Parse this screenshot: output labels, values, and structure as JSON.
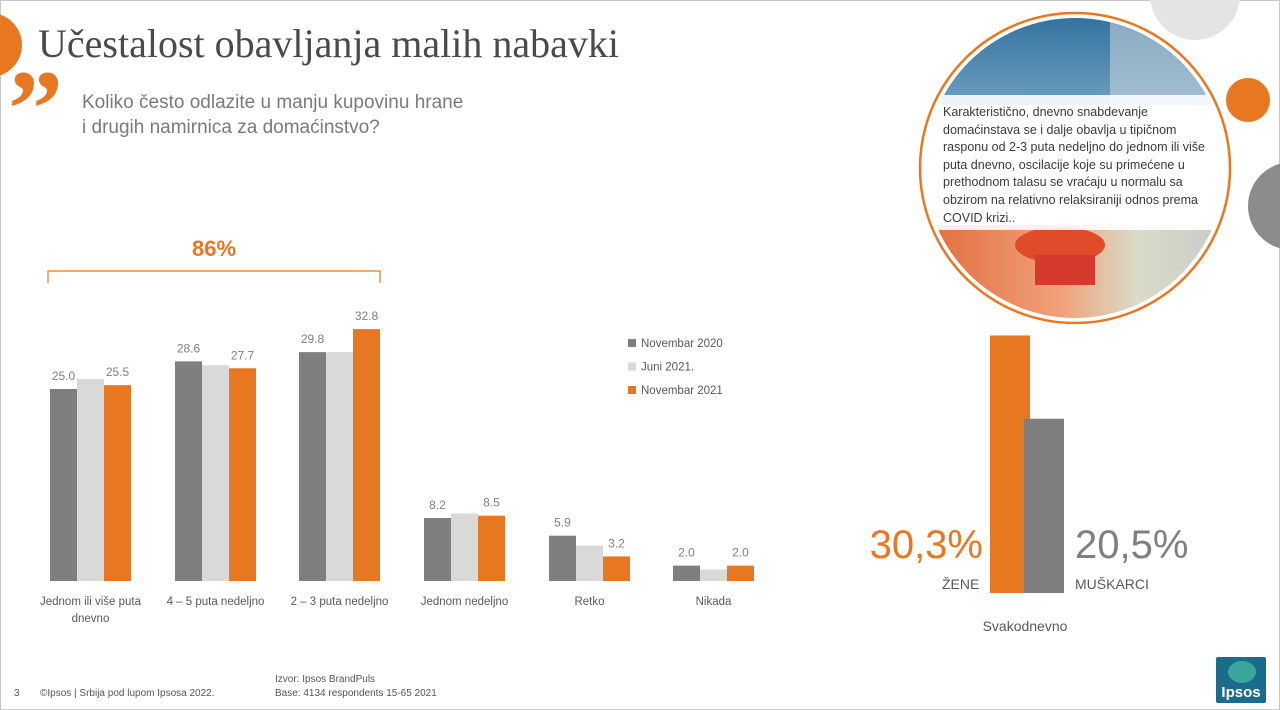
{
  "title": "Učestalost obavljanja malih nabavki",
  "question_line1": "Koliko često odlazite u manju kupovinu hrane",
  "question_line2": "i drugih namirnica za domaćinstvo?",
  "bubble_text": "Karakteristično, dnevno snabdevanje domaćinstava se i dalje obavlja u tipičnom rasponu od 2-3 puta nedeljno do jednom ili više puta dnevno, oscilacije koje su primećene u prethodnom talasu se vraćaju u normalu sa obzirom na relativno relaksiraniji odnos prema COVID krizi..",
  "footer": {
    "page_number": "3",
    "copyright": "©Ipsos | Srbija pod lupom Ipsosa 2022.",
    "source": "Izvor: Ipsos BrandPuls",
    "base": "Base: 4134 respondents 15-65 2021"
  },
  "logo_text": "Ipsos",
  "colors": {
    "dark_grey": "#7f7f7f",
    "light_grey": "#d9d9d9",
    "orange": "#e87722",
    "text": "#595959"
  },
  "chart_data": [
    {
      "type": "bar",
      "categories": [
        "Jednom ili više puta dnevno",
        "4 – 5 puta nedeljno",
        "2 – 3 puta nedeljno",
        "Jednom nedeljno",
        "Retko",
        "Nikada"
      ],
      "category_lines": [
        [
          "Jednom ili više puta",
          "dnevno"
        ],
        [
          "4 – 5 puta nedeljno"
        ],
        [
          "2 – 3 puta nedeljno"
        ],
        [
          "Jednom nedeljno"
        ],
        [
          "Retko"
        ],
        [
          "Nikada"
        ]
      ],
      "series": [
        {
          "name": "Novembar 2020",
          "color": "#7f7f7f",
          "values": [
            25.0,
            28.6,
            29.8,
            8.2,
            5.9,
            2.0
          ],
          "labels": [
            "25.0",
            "28.6",
            "29.8",
            "8.2",
            "5.9",
            "2.0"
          ]
        },
        {
          "name": "Juni 2021.",
          "color": "#d9d9d9",
          "values": [
            26.3,
            28.1,
            29.8,
            8.8,
            4.6,
            1.5
          ],
          "labels": []
        },
        {
          "name": "Novembar 2021",
          "color": "#e87722",
          "values": [
            25.5,
            27.7,
            32.8,
            8.5,
            3.2,
            2.0
          ],
          "labels": [
            "25.5",
            "27.7",
            "32.8",
            "8.5",
            "3.2",
            "2.0"
          ]
        }
      ],
      "bracket_label": "86%",
      "bracket_span": [
        "Jednom ili više puta dnevno",
        "2 – 3 puta nedeljno"
      ],
      "ylim": [
        0,
        35
      ],
      "legend": "right",
      "grid": false
    },
    {
      "type": "bar",
      "title": "Svakodnevno",
      "categories": [
        "ŽENE",
        "MUŠKARCI"
      ],
      "values": [
        30.3,
        20.5
      ],
      "value_labels": [
        "30,3%",
        "20,5%"
      ],
      "colors": [
        "#e87722",
        "#7f7f7f"
      ],
      "ylim": [
        0,
        35
      ]
    }
  ]
}
